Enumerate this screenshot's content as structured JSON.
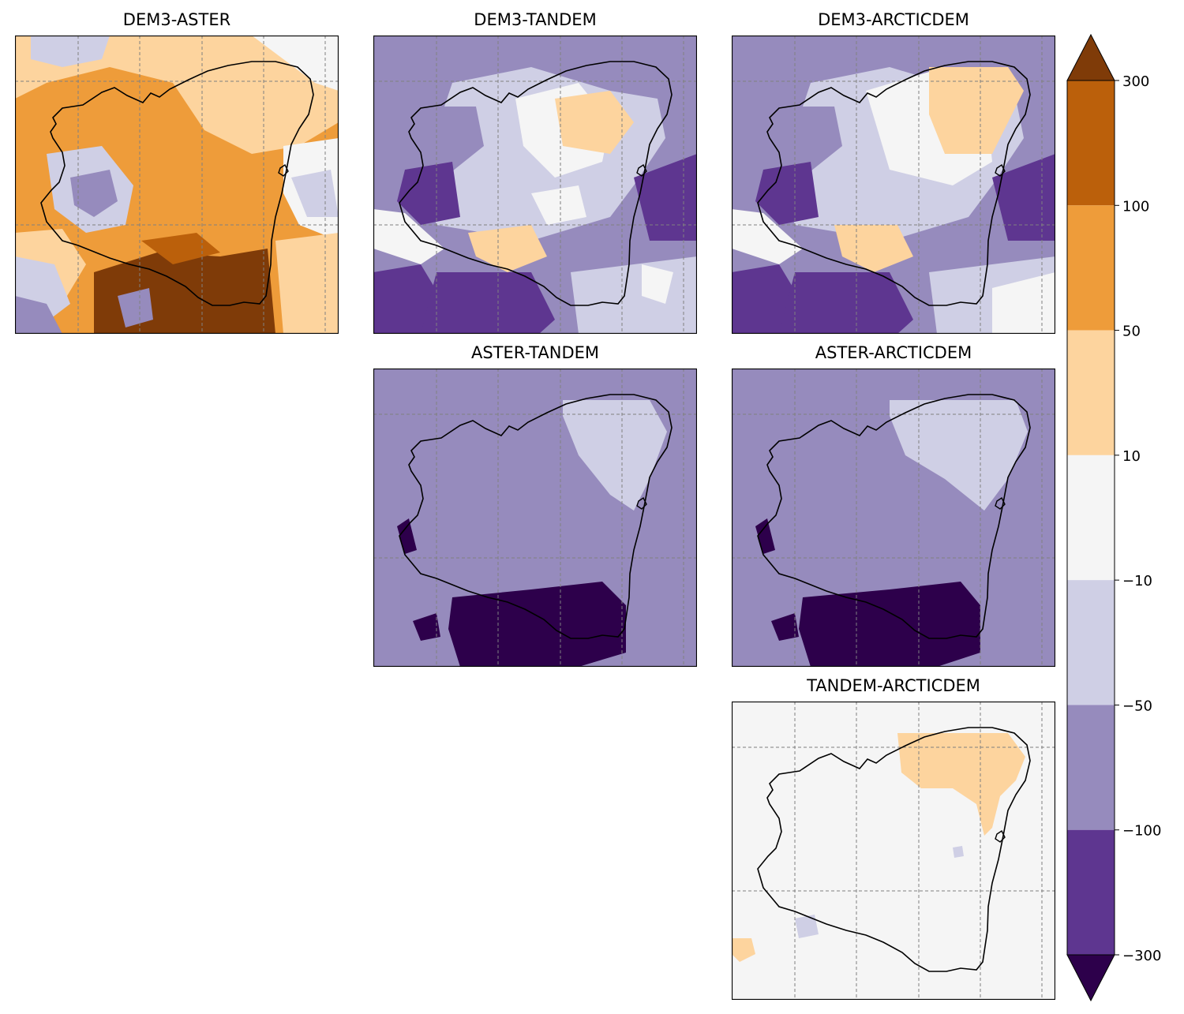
{
  "figure": {
    "colorbar_ticks": [
      "300",
      "100",
      "50",
      "10",
      "−10",
      "−50",
      "−100",
      "−300"
    ],
    "class_colors": [
      "#2d004b",
      "#5e3690",
      "#968bbd",
      "#cfcfe5",
      "#f5f5f5",
      "#fdd49e",
      "#ee9c3a",
      "#bb600b",
      "#7f3b08"
    ],
    "outline_color": "#000000",
    "gridline_color": "#808080",
    "colorbar_extend": "both"
  },
  "chart_data": [
    {
      "type": "heatmap",
      "title": "DEM3-ASTER",
      "bins": [
        -300,
        -100,
        -50,
        -10,
        10,
        50,
        100,
        300
      ],
      "dominant_class": "50 to 100",
      "secondary_classes": [
        "10 to 50",
        "-10 to 10",
        "-50 to -10",
        "> 300"
      ],
      "grid": true
    },
    {
      "type": "heatmap",
      "title": "DEM3-TANDEM",
      "bins": [
        -300,
        -100,
        -50,
        -10,
        10,
        50,
        100,
        300
      ],
      "dominant_class": "-100 to -50",
      "secondary_classes": [
        "-50 to -10",
        "10 to 50",
        "-300 to -100"
      ],
      "grid": true
    },
    {
      "type": "heatmap",
      "title": "DEM3-ARCTICDEM",
      "bins": [
        -300,
        -100,
        -50,
        -10,
        10,
        50,
        100,
        300
      ],
      "dominant_class": "-100 to -50",
      "secondary_classes": [
        "-50 to -10",
        "10 to 50",
        "-300 to -100"
      ],
      "grid": true
    },
    {
      "type": "heatmap",
      "title": "ASTER-TANDEM",
      "bins": [
        -300,
        -100,
        -50,
        -10,
        10,
        50,
        100,
        300
      ],
      "dominant_class": "-100 to -50",
      "secondary_classes": [
        "-50 to -10",
        "< -300"
      ],
      "grid": true
    },
    {
      "type": "heatmap",
      "title": "ASTER-ARCTICDEM",
      "bins": [
        -300,
        -100,
        -50,
        -10,
        10,
        50,
        100,
        300
      ],
      "dominant_class": "-100 to -50",
      "secondary_classes": [
        "-50 to -10",
        "< -300"
      ],
      "grid": true
    },
    {
      "type": "heatmap",
      "title": "TANDEM-ARCTICDEM",
      "bins": [
        -300,
        -100,
        -50,
        -10,
        10,
        50,
        100,
        300
      ],
      "dominant_class": "-10 to 10",
      "secondary_classes": [
        "10 to 50",
        "-50 to -10"
      ],
      "grid": true
    }
  ]
}
